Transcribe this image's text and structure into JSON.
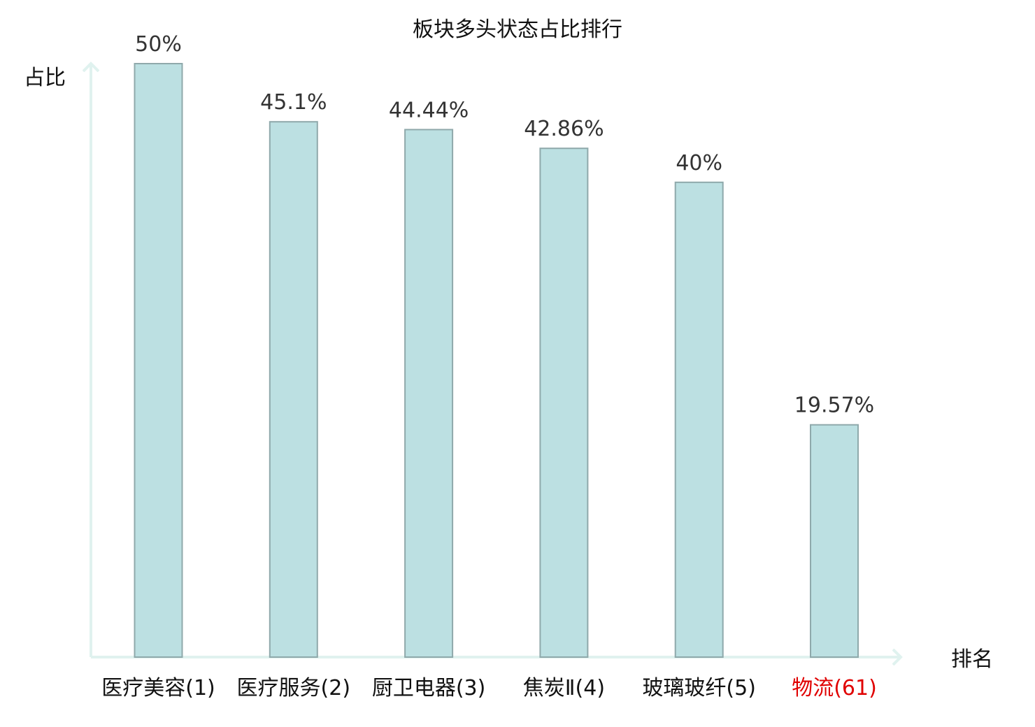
{
  "chart_data": {
    "type": "bar",
    "title": "板块多头状态占比排行",
    "ylabel": "占比",
    "xlabel": "排名",
    "categories": [
      "医疗美容(1)",
      "医疗服务(2)",
      "厨卫电器(3)",
      "焦炭Ⅱ(4)",
      "玻璃玻纤(5)",
      "物流(61)"
    ],
    "values": [
      50,
      45.1,
      44.44,
      42.86,
      40,
      19.57
    ],
    "value_labels": [
      "50%",
      "45.1%",
      "44.44%",
      "42.86%",
      "40%",
      "19.57%"
    ],
    "highlight_index": 5,
    "ylim": [
      0,
      50
    ],
    "grid": false,
    "legend": "none"
  },
  "colors": {
    "bar_fill": "#bce0e2",
    "bar_stroke": "#8fa9ab",
    "axis": "#e0f2ef",
    "label_default": "#111111",
    "label_highlight": "#e00000",
    "value_text": "#333333"
  }
}
